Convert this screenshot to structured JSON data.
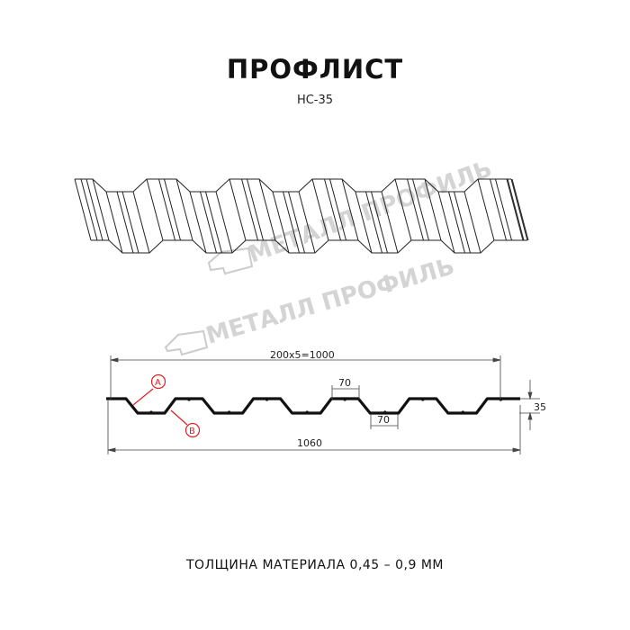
{
  "title": "ПРОФЛИСТ",
  "subtitle": "НС-35",
  "watermark": "МЕТАЛЛ ПРОФИЛЬ",
  "dimensions": {
    "pitch_total": "200x5=1000",
    "crest_width": "70",
    "trough_width": "70",
    "height": "35",
    "full_width": "1060"
  },
  "markers": {
    "a": "A",
    "b": "B"
  },
  "marker_color": "#e02020",
  "footer": "ТОЛЩИНА МАТЕРИАЛА 0,45 – 0,9 ММ"
}
